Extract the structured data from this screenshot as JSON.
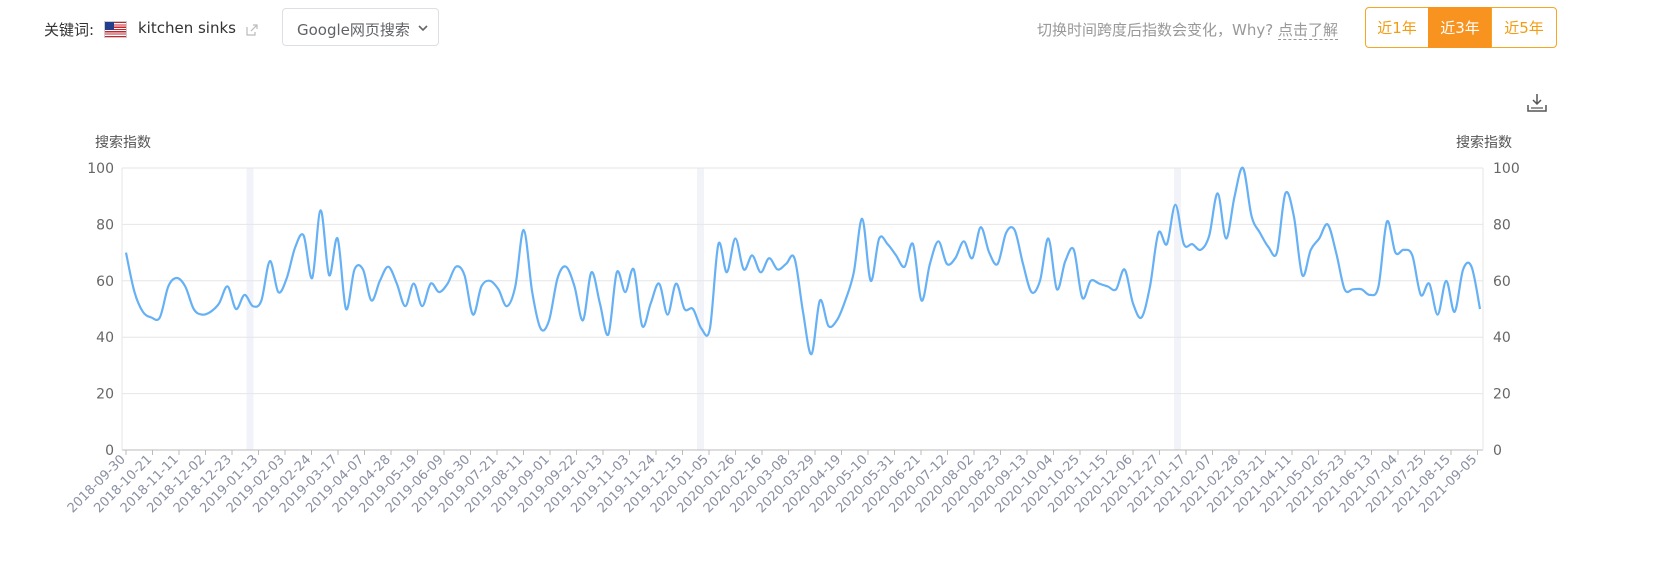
{
  "header": {
    "keyword_label": "关键词:",
    "keyword": "kitchen sinks",
    "source_select": {
      "value": "Google网页搜索"
    },
    "hint_text": "切换时间跨度后指数会变化，Why?",
    "hint_link": "点击了解",
    "ranges": [
      {
        "label": "近1年",
        "active": false
      },
      {
        "label": "近3年",
        "active": true
      },
      {
        "label": "近5年",
        "active": false
      }
    ]
  },
  "icons": {
    "flag": "us-flag-icon",
    "share": "share-icon",
    "select": "chevron-down-icon",
    "download": "download-icon"
  },
  "colors": {
    "line": "#66b1f5",
    "accent": "#f7931e",
    "grid": "#e6e6e6"
  },
  "chart_data": {
    "type": "line",
    "ylabel_left": "搜索指数",
    "ylabel_right": "搜索指数",
    "ylim": [
      0,
      100
    ],
    "yticks": [
      0,
      20,
      40,
      60,
      80,
      100
    ],
    "grid": true,
    "xticks": [
      "2018-09-30",
      "2018-10-21",
      "2018-11-11",
      "2018-12-02",
      "2018-12-23",
      "2019-01-13",
      "2019-02-03",
      "2019-02-24",
      "2019-03-17",
      "2019-04-07",
      "2019-04-28",
      "2019-05-19",
      "2019-06-09",
      "2019-06-30",
      "2019-07-21",
      "2019-08-11",
      "2019-09-01",
      "2019-09-22",
      "2019-10-13",
      "2019-11-03",
      "2019-11-24",
      "2019-12-15",
      "2020-01-05",
      "2020-01-26",
      "2020-02-16",
      "2020-03-08",
      "2020-03-29",
      "2020-04-19",
      "2020-05-10",
      "2020-05-31",
      "2020-06-21",
      "2020-07-12",
      "2020-08-02",
      "2020-08-23",
      "2020-09-13",
      "2020-10-04",
      "2020-10-25",
      "2020-11-15",
      "2020-12-06",
      "2020-12-27",
      "2021-01-17",
      "2021-02-07",
      "2021-02-28",
      "2021-03-21",
      "2021-04-11",
      "2021-05-02",
      "2021-05-23",
      "2021-06-13",
      "2021-07-04",
      "2021-07-25",
      "2021-08-15",
      "2021-09-05"
    ],
    "series": [
      {
        "values": [
          70,
          56,
          49,
          47,
          47,
          58,
          61,
          58,
          50,
          48,
          49,
          52,
          58,
          50,
          55,
          51,
          53,
          67,
          56,
          61,
          72,
          76,
          61,
          85,
          62,
          75,
          50,
          64,
          64,
          53,
          60,
          65,
          59,
          51,
          59,
          51,
          59,
          56,
          59,
          65,
          62,
          48,
          58,
          60,
          57,
          51,
          58,
          78,
          56,
          43,
          46,
          61,
          65,
          58,
          46,
          63,
          52,
          41,
          63,
          56,
          64,
          44,
          52,
          59,
          48,
          59,
          50,
          50,
          43,
          43,
          73,
          63,
          75,
          64,
          69,
          63,
          68,
          64,
          66,
          68,
          49,
          34,
          53,
          44,
          46,
          53,
          63,
          82,
          60,
          75,
          73,
          69,
          65,
          73,
          53,
          66,
          74,
          66,
          68,
          74,
          68,
          79,
          70,
          66,
          77,
          78,
          66,
          56,
          60,
          75,
          57,
          67,
          71,
          54,
          60,
          59,
          58,
          57,
          64,
          52,
          47,
          58,
          77,
          73,
          87,
          73,
          73,
          71,
          76,
          91,
          75,
          90,
          100,
          83,
          77,
          72,
          70,
          91,
          83,
          62,
          71,
          75,
          80,
          70,
          57,
          57,
          57,
          55,
          58,
          81,
          70,
          71,
          69,
          55,
          59,
          48,
          60,
          49,
          64,
          65,
          50
        ]
      }
    ]
  }
}
